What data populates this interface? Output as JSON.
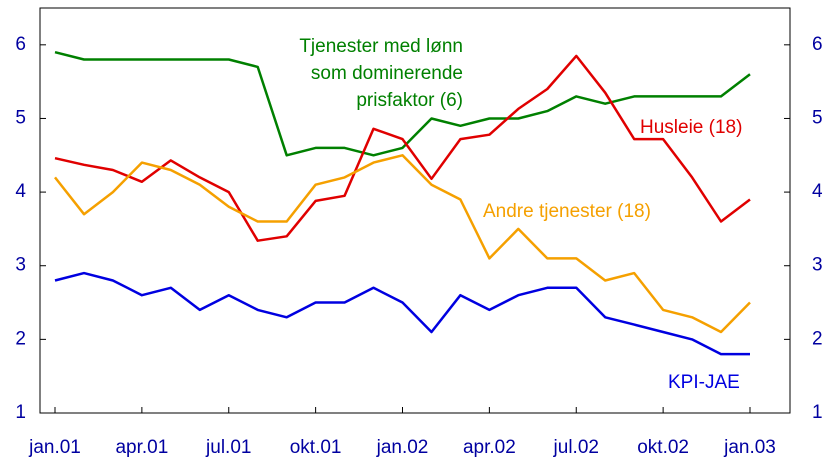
{
  "chart_data": {
    "type": "line",
    "categories": [
      "jan.01",
      null,
      null,
      "apr.01",
      null,
      null,
      "jul.01",
      null,
      null,
      "okt.01",
      null,
      null,
      "jan.02",
      null,
      null,
      "apr.02",
      null,
      null,
      "jul.02",
      null,
      null,
      "okt.02",
      null,
      null,
      "jan.03"
    ],
    "series": [
      {
        "name": "Tjenester med lønn\nsom dominerende\nprisfaktor (6)",
        "color": "#008000",
        "values": [
          5.9,
          5.8,
          5.8,
          5.8,
          5.8,
          5.8,
          5.8,
          5.7,
          4.5,
          4.6,
          4.6,
          4.5,
          4.6,
          5.0,
          4.9,
          5.0,
          5.0,
          5.1,
          5.3,
          5.2,
          5.3,
          5.3,
          5.3,
          5.3,
          5.6
        ]
      },
      {
        "name": "Husleie (18)",
        "color": "#e00000",
        "values": [
          4.46,
          4.37,
          4.3,
          4.14,
          4.43,
          4.2,
          4.0,
          3.34,
          3.4,
          3.88,
          3.95,
          4.86,
          4.72,
          4.18,
          4.72,
          4.78,
          5.13,
          5.4,
          5.85,
          5.35,
          4.72,
          4.72,
          4.2,
          3.6,
          3.9
        ]
      },
      {
        "name": "Andre tjenester (18)",
        "color": "#f5a000",
        "values": [
          4.2,
          3.7,
          4.0,
          4.4,
          4.3,
          4.1,
          3.8,
          3.6,
          3.6,
          4.1,
          4.2,
          4.4,
          4.5,
          4.1,
          3.9,
          3.1,
          3.5,
          3.1,
          3.1,
          2.8,
          2.9,
          2.4,
          2.3,
          2.1,
          2.5
        ]
      },
      {
        "name": "KPI-JAE",
        "color": "#0000e0",
        "values": [
          2.8,
          2.9,
          2.8,
          2.6,
          2.7,
          2.4,
          2.6,
          2.4,
          2.3,
          2.5,
          2.5,
          2.7,
          2.5,
          2.1,
          2.6,
          2.4,
          2.6,
          2.7,
          2.7,
          2.3,
          2.2,
          2.1,
          2.0,
          1.8,
          1.8
        ]
      }
    ],
    "ylim": [
      1,
      6.5
    ],
    "yticks": [
      1,
      2,
      3,
      4,
      5,
      6
    ],
    "y2lim": [
      1,
      6.5
    ],
    "y2ticks": [
      1,
      2,
      3,
      4,
      5,
      6
    ]
  }
}
